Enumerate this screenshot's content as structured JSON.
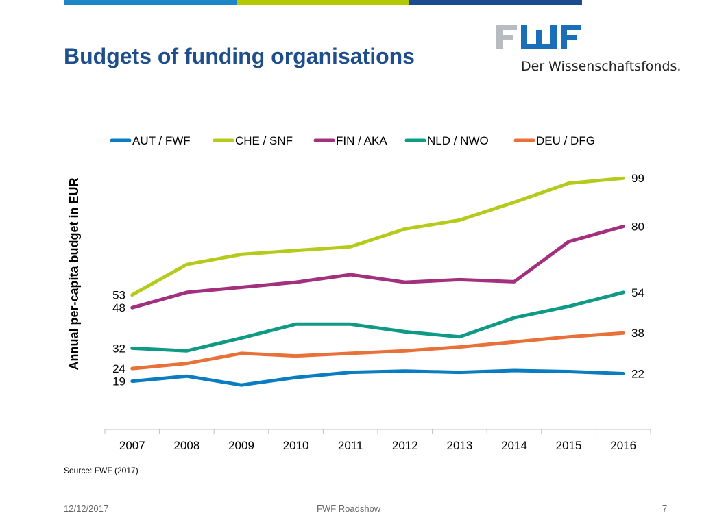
{
  "slide": {
    "title": "Budgets of funding organisations",
    "source": "Source: FWF (2017)",
    "footer_date": "12/12/2017",
    "footer_center": "FWF Roadshow",
    "page_number": "7"
  },
  "logo": {
    "text": "FWF",
    "tagline": "Der Wissenschaftsfonds."
  },
  "colors": {
    "title": "#1f4e8c",
    "topbar": [
      "#1b87c9",
      "#b5c900",
      "#1a4d8f"
    ]
  },
  "chart_data": {
    "type": "line",
    "title": "",
    "xlabel": "",
    "ylabel": "Annual per-capita budget in EUR",
    "legend_position": "top",
    "grid": false,
    "ylim": [
      0,
      105
    ],
    "categories": [
      "2007",
      "2008",
      "2009",
      "2010",
      "2011",
      "2012",
      "2013",
      "2014",
      "2015",
      "2016"
    ],
    "series": [
      {
        "name": "AUT / FWF",
        "color": "#0a7cc1",
        "values": [
          19,
          21,
          17.5,
          20.5,
          22.5,
          23,
          22.5,
          23.2,
          22.8,
          22
        ],
        "start_label": "19",
        "end_label": "22"
      },
      {
        "name": "CHE / SNF",
        "color": "#b6ca1c",
        "values": [
          53,
          65,
          69,
          70.5,
          72,
          79,
          82.5,
          89.5,
          97,
          99
        ],
        "start_label": "53",
        "end_label": "99"
      },
      {
        "name": "FIN / AKA",
        "color": "#a3307d",
        "values": [
          48,
          54,
          56,
          58,
          61,
          58,
          59,
          58.2,
          74,
          80
        ],
        "start_label": "48",
        "end_label": "80"
      },
      {
        "name": "NLD / NWO",
        "color": "#0e9a84",
        "values": [
          32,
          31,
          36,
          41.5,
          41.5,
          38.5,
          36.5,
          44,
          48.5,
          54
        ],
        "start_label": "32",
        "end_label": "54"
      },
      {
        "name": "DEU / DFG",
        "color": "#e8713a",
        "values": [
          24,
          26,
          30,
          29,
          30,
          31,
          32.5,
          34.5,
          36.5,
          38
        ],
        "start_label": "24",
        "end_label": "38"
      }
    ]
  }
}
